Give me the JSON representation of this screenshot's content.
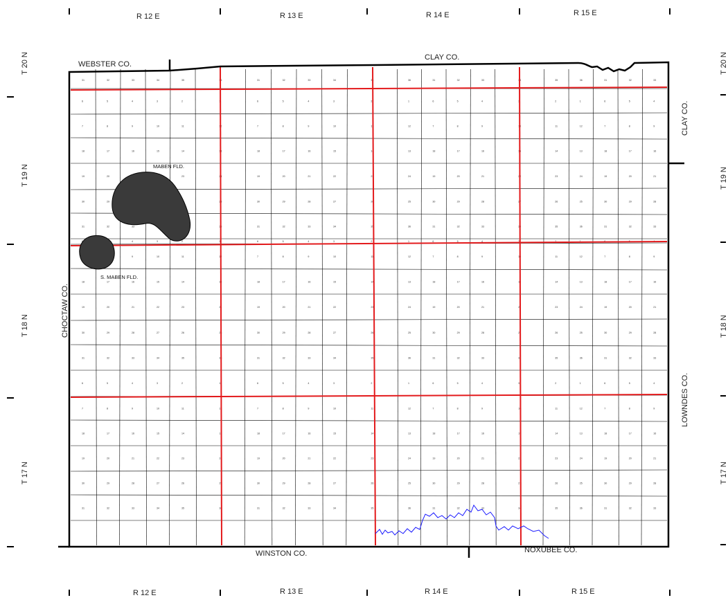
{
  "map": {
    "range_labels": [
      "R 12 E",
      "R 13 E",
      "R 14 E",
      "R 15 E"
    ],
    "township_labels": [
      "T 20 N",
      "T 19 N",
      "T 18 N",
      "T 17 N"
    ],
    "counties": {
      "north_west": "WEBSTER CO.",
      "north_east": "CLAY CO.",
      "east_upper": "CLAY CO.",
      "west": "CHOCTAW CO.",
      "east_lower": "LOWNDES CO.",
      "south_west": "WINSTON CO.",
      "south_east": "NOXUBEE CO."
    },
    "fields": [
      {
        "name": "MABEN FLD.",
        "fill": "#3a3a3a"
      },
      {
        "name": "S. MABEN FLD.",
        "fill": "#3a3a3a"
      }
    ],
    "colors": {
      "county_boundary": "#000000",
      "township_range_line": "#e31a1c",
      "section_line": "#000000",
      "river": "#1a1aff",
      "field_fill": "#3a3a3a"
    },
    "section_numbers": [
      "6",
      "5",
      "4",
      "3",
      "2",
      "1",
      "7",
      "8",
      "9",
      "10",
      "11",
      "12",
      "18",
      "17",
      "16",
      "15",
      "14",
      "13",
      "19",
      "20",
      "21",
      "22",
      "23",
      "24",
      "30",
      "29",
      "28",
      "27",
      "26",
      "25",
      "31",
      "32",
      "33",
      "34",
      "35",
      "36"
    ]
  }
}
